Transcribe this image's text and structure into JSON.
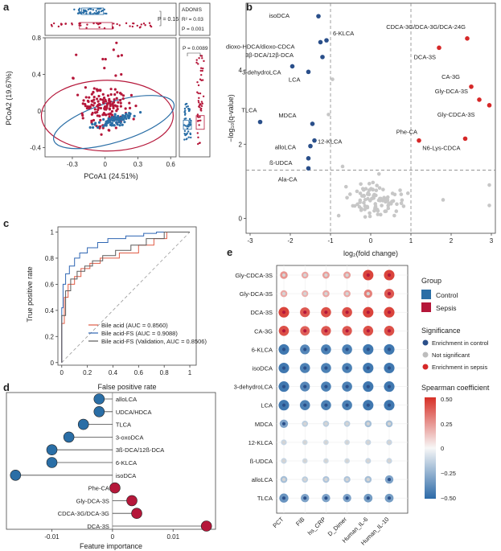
{
  "chart_data": [
    {
      "panel": "a",
      "type": "scatter",
      "xlabel": "PCoA1 (24.51%)",
      "ylabel": "PCoA2 (19.67%)",
      "xticks": [
        -0.3,
        0,
        0.3,
        0.6
      ],
      "yticks": [
        -0.4,
        0,
        0.4,
        0.8
      ],
      "xlim": [
        -0.55,
        0.65
      ],
      "ylim": [
        -0.5,
        0.8
      ],
      "series_colors": {
        "control": "#2a6ea6",
        "sepsis": "#b5173a"
      },
      "top_box_p": "P = 0.16",
      "right_box_p": "P = 0.0089",
      "adonis_title": "ADONIS",
      "adonis_r2": "R² = 0.03",
      "adonis_p": "P = 0.001"
    },
    {
      "panel": "b",
      "type": "scatter",
      "xlabel": "log₂(fold change)",
      "ylabel": "−log₁₀(q-value)",
      "xticks": [
        -3,
        -2,
        -1,
        0,
        1,
        2,
        3
      ],
      "yticks": [
        0,
        2,
        4
      ],
      "xlim": [
        -3.1,
        3.1
      ],
      "ylim": [
        -0.4,
        5.8
      ],
      "fc_threshold": [
        -1,
        1
      ],
      "q_threshold": 1.3,
      "labeled_points": [
        {
          "label": "isoDCA",
          "x": -1.3,
          "y": 5.45,
          "group": "control"
        },
        {
          "label": "6-KLCA",
          "x": -1.1,
          "y": 4.8,
          "group": "control"
        },
        {
          "label": "dioxo-HDCA/dioxo-CDCA",
          "x": -1.25,
          "y": 4.75,
          "group": "control"
        },
        {
          "label": "3β-DCA/12β-DCA",
          "x": -1.2,
          "y": 4.35,
          "group": "control"
        },
        {
          "label": "3-dehydroLCA",
          "x": -1.95,
          "y": 4.1,
          "group": "control"
        },
        {
          "label": "LCA",
          "x": -1.55,
          "y": 3.95,
          "group": "control"
        },
        {
          "label": "TLCA",
          "x": -2.75,
          "y": 2.6,
          "group": "control"
        },
        {
          "label": "MDCA",
          "x": -1.45,
          "y": 2.55,
          "group": "control"
        },
        {
          "label": "12-KLCA",
          "x": -1.4,
          "y": 2.1,
          "group": "control"
        },
        {
          "label": "alloLCA",
          "x": -1.5,
          "y": 1.95,
          "group": "control"
        },
        {
          "label": "ß-UDCA",
          "x": -1.55,
          "y": 1.62,
          "group": "control"
        },
        {
          "label": "Ala-CA",
          "x": -1.55,
          "y": 1.35,
          "group": "control"
        },
        {
          "label": "CDCA-3G/DCA-3G/DCA-24G",
          "x": 2.4,
          "y": 4.85,
          "group": "sepsis"
        },
        {
          "label": "DCA-3S",
          "x": 1.7,
          "y": 4.6,
          "group": "sepsis"
        },
        {
          "label": "CA-3G",
          "x": 2.5,
          "y": 3.55,
          "group": "sepsis"
        },
        {
          "label": "Gly-DCA-3S",
          "x": 2.7,
          "y": 3.2,
          "group": "sepsis"
        },
        {
          "label": "Gly-CDCA-3S",
          "x": 2.95,
          "y": 3.05,
          "group": "sepsis"
        },
        {
          "label": "N6-Lys-CDCA",
          "x": 2.35,
          "y": 2.15,
          "group": "sepsis"
        },
        {
          "label": "Phe-CA",
          "x": 1.2,
          "y": 2.1,
          "group": "sepsis"
        }
      ]
    },
    {
      "panel": "c",
      "type": "line",
      "xlabel": "False positive rate",
      "ylabel": "True positive rate",
      "xticks": [
        0,
        0.2,
        0.4,
        0.6,
        0.8,
        1.0
      ],
      "yticks": [
        0,
        0.2,
        0.4,
        0.6,
        0.8,
        1.0
      ],
      "xlim": [
        -0.03,
        1.05
      ],
      "ylim": [
        -0.02,
        1.04
      ],
      "series": [
        {
          "name": "Bile acid (AUC = 0.8560)",
          "color": "#e05c46",
          "x": [
            0,
            0,
            0.02,
            0.02,
            0.05,
            0.05,
            0.1,
            0.1,
            0.15,
            0.15,
            0.22,
            0.22,
            0.3,
            0.3,
            0.45,
            0.45,
            0.6,
            0.6,
            0.72,
            0.72,
            0.82,
            0.82,
            1
          ],
          "y": [
            0,
            0.3,
            0.3,
            0.5,
            0.5,
            0.6,
            0.6,
            0.66,
            0.66,
            0.72,
            0.72,
            0.76,
            0.76,
            0.8,
            0.8,
            0.84,
            0.84,
            0.9,
            0.9,
            0.95,
            0.95,
            1,
            1
          ]
        },
        {
          "name": "Bile acid-FS (AUC = 0.9088)",
          "color": "#2f66b3",
          "x": [
            0,
            0,
            0.01,
            0.01,
            0.03,
            0.03,
            0.06,
            0.06,
            0.1,
            0.1,
            0.14,
            0.14,
            0.2,
            0.2,
            0.28,
            0.28,
            0.36,
            0.36,
            0.5,
            0.5,
            0.64,
            0.64,
            0.74,
            0.74,
            1
          ],
          "y": [
            0,
            0.42,
            0.42,
            0.6,
            0.6,
            0.68,
            0.68,
            0.74,
            0.74,
            0.8,
            0.8,
            0.84,
            0.84,
            0.88,
            0.88,
            0.92,
            0.92,
            0.95,
            0.95,
            0.97,
            0.97,
            0.99,
            0.99,
            1,
            1
          ]
        },
        {
          "name": "Bile acid-FS (Validation, AUC = 0.8506)",
          "color": "#5a5a5a",
          "x": [
            0,
            0,
            0.03,
            0.03,
            0.07,
            0.07,
            0.12,
            0.12,
            0.18,
            0.18,
            0.24,
            0.24,
            0.32,
            0.32,
            0.42,
            0.42,
            0.54,
            0.54,
            0.66,
            0.66,
            0.8,
            0.8,
            1
          ],
          "y": [
            0,
            0.36,
            0.36,
            0.55,
            0.55,
            0.64,
            0.64,
            0.7,
            0.7,
            0.74,
            0.74,
            0.78,
            0.78,
            0.82,
            0.82,
            0.86,
            0.86,
            0.9,
            0.9,
            0.95,
            0.95,
            1,
            1
          ]
        }
      ]
    },
    {
      "panel": "d",
      "type": "bar",
      "xlabel": "Feature importance",
      "xticks": [
        -0.01,
        0,
        0.01
      ],
      "xlim": [
        -0.0175,
        0.017
      ],
      "categories": [
        "alloLCA",
        "UDCA/HDCA",
        "TLCA",
        "3-oxoDCA",
        "3ß-DCA/12ß-DCA",
        "6-KLCA",
        "isoDCA",
        "Phe-CA",
        "Gly-DCA-3S",
        "CDCA-3G/DCA-3G",
        "DCA-3S"
      ],
      "values": [
        -0.0022,
        -0.0022,
        -0.0048,
        -0.0072,
        -0.01,
        -0.01,
        -0.016,
        0.0004,
        0.0032,
        0.004,
        0.0155
      ],
      "colors": {
        "negative": "#2a6ea6",
        "positive": "#b5173a"
      }
    },
    {
      "panel": "e",
      "type": "heatmap",
      "rows": [
        "Gly-CDCA-3S",
        "Gly-DCA-3S",
        "DCA-3S",
        "CA-3G",
        "6-KLCA",
        "isoDCA",
        "3-dehydroLCA",
        "LCA",
        "MDCA",
        "12-KLCA",
        "ß-UDCA",
        "alloLCA",
        "TLCA"
      ],
      "cols": [
        "PCT",
        "FIB",
        "hs_CRP",
        "D_Dimer",
        "Human_IL-6",
        "Human_IL-10"
      ],
      "values": [
        [
          0.25,
          0.2,
          0.22,
          0.22,
          0.45,
          0.45
        ],
        [
          0.2,
          0.18,
          0.2,
          0.2,
          0.3,
          0.4
        ],
        [
          0.45,
          0.4,
          0.42,
          0.42,
          0.45,
          0.45
        ],
        [
          0.42,
          0.38,
          0.4,
          0.4,
          0.42,
          0.42
        ],
        [
          -0.45,
          -0.4,
          -0.42,
          -0.42,
          -0.45,
          -0.45
        ],
        [
          -0.45,
          -0.42,
          -0.42,
          -0.42,
          -0.45,
          -0.45
        ],
        [
          -0.45,
          -0.4,
          -0.42,
          -0.42,
          -0.45,
          -0.45
        ],
        [
          -0.45,
          -0.42,
          -0.42,
          -0.42,
          -0.45,
          -0.45
        ],
        [
          -0.3,
          -0.15,
          -0.15,
          -0.15,
          -0.2,
          -0.2
        ],
        [
          -0.12,
          -0.1,
          -0.1,
          -0.1,
          -0.12,
          -0.12
        ],
        [
          -0.12,
          -0.1,
          -0.1,
          -0.1,
          -0.12,
          -0.12
        ],
        [
          -0.2,
          -0.15,
          -0.18,
          -0.18,
          -0.2,
          -0.3
        ],
        [
          -0.35,
          -0.3,
          -0.3,
          -0.3,
          -0.32,
          -0.32
        ]
      ],
      "significance": [
        [
          "n",
          "n",
          "n",
          "n",
          "s",
          "s"
        ],
        [
          "n",
          "n",
          "n",
          "n",
          "n",
          "s"
        ],
        [
          "s",
          "s",
          "s",
          "s",
          "s",
          "s"
        ],
        [
          "s",
          "s",
          "s",
          "s",
          "s",
          "s"
        ],
        [
          "c",
          "c",
          "c",
          "c",
          "c",
          "c"
        ],
        [
          "c",
          "c",
          "c",
          "c",
          "c",
          "c"
        ],
        [
          "c",
          "c",
          "c",
          "c",
          "c",
          "c"
        ],
        [
          "c",
          "c",
          "c",
          "c",
          "c",
          "c"
        ],
        [
          "c",
          "n",
          "n",
          "n",
          "n",
          "n"
        ],
        [
          "n",
          "n",
          "n",
          "n",
          "n",
          "n"
        ],
        [
          "n",
          "n",
          "n",
          "n",
          "n",
          "n"
        ],
        [
          "n",
          "n",
          "n",
          "n",
          "n",
          "c"
        ],
        [
          "c",
          "c",
          "c",
          "c",
          "c",
          "c"
        ]
      ],
      "colorbar_ticks": [
        0.5,
        0.25,
        0,
        -0.25,
        -0.5
      ]
    }
  ],
  "panels": {
    "a": "a",
    "b": "b",
    "c": "c",
    "d": "d",
    "e": "e"
  },
  "legend_e": {
    "group_title": "Group",
    "group_items": [
      {
        "label": "Control",
        "color": "#2a6ea6"
      },
      {
        "label": "Sepsis",
        "color": "#b5173a"
      }
    ],
    "sig_title": "Significance",
    "sig_items": [
      {
        "label": "Enrichment in control",
        "color": "#2a4f8a"
      },
      {
        "label": "Not significant",
        "color": "#bdbdbd"
      },
      {
        "label": "Enrichment in sepsis",
        "color": "#d62828"
      }
    ],
    "cbar_title": "Spearman coefficient",
    "cbar_labels": [
      "0.50",
      "0.25",
      "0",
      "−0.25",
      "−0.50"
    ]
  }
}
